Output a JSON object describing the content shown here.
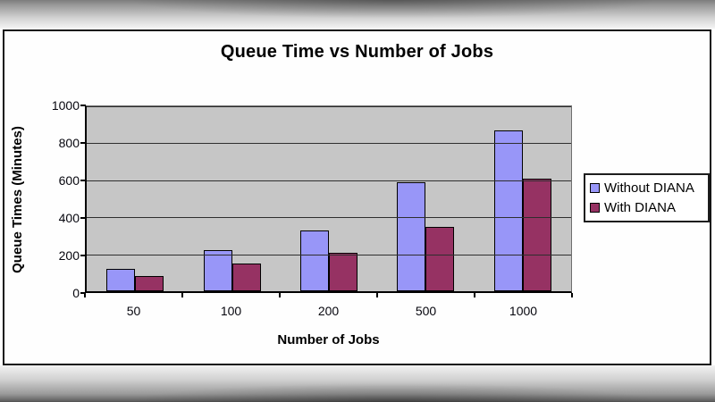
{
  "colors": {
    "plot_background": "#c6c6c6",
    "gridline": "#2e2e2e",
    "panel_border": "#151515",
    "series_without_diana": "#9896f8",
    "series_with_diana": "#963263"
  },
  "chart_data": {
    "type": "bar",
    "title": "Queue Time vs Number of Jobs",
    "xlabel": "Number of Jobs",
    "ylabel": "Queue Times (Minutes)",
    "categories": [
      "50",
      "100",
      "200",
      "500",
      "1000"
    ],
    "series": [
      {
        "name": "Without DIANA",
        "color": "#9896f8",
        "values": [
          120,
          220,
          330,
          590,
          870
        ]
      },
      {
        "name": "With DIANA",
        "color": "#963263",
        "values": [
          80,
          150,
          210,
          350,
          610
        ]
      }
    ],
    "ylim": [
      0,
      1000
    ],
    "yticks": [
      0,
      200,
      400,
      600,
      800,
      1000
    ],
    "grid": true,
    "legend_position": "right",
    "plot_bg": "#c6c6c6"
  }
}
